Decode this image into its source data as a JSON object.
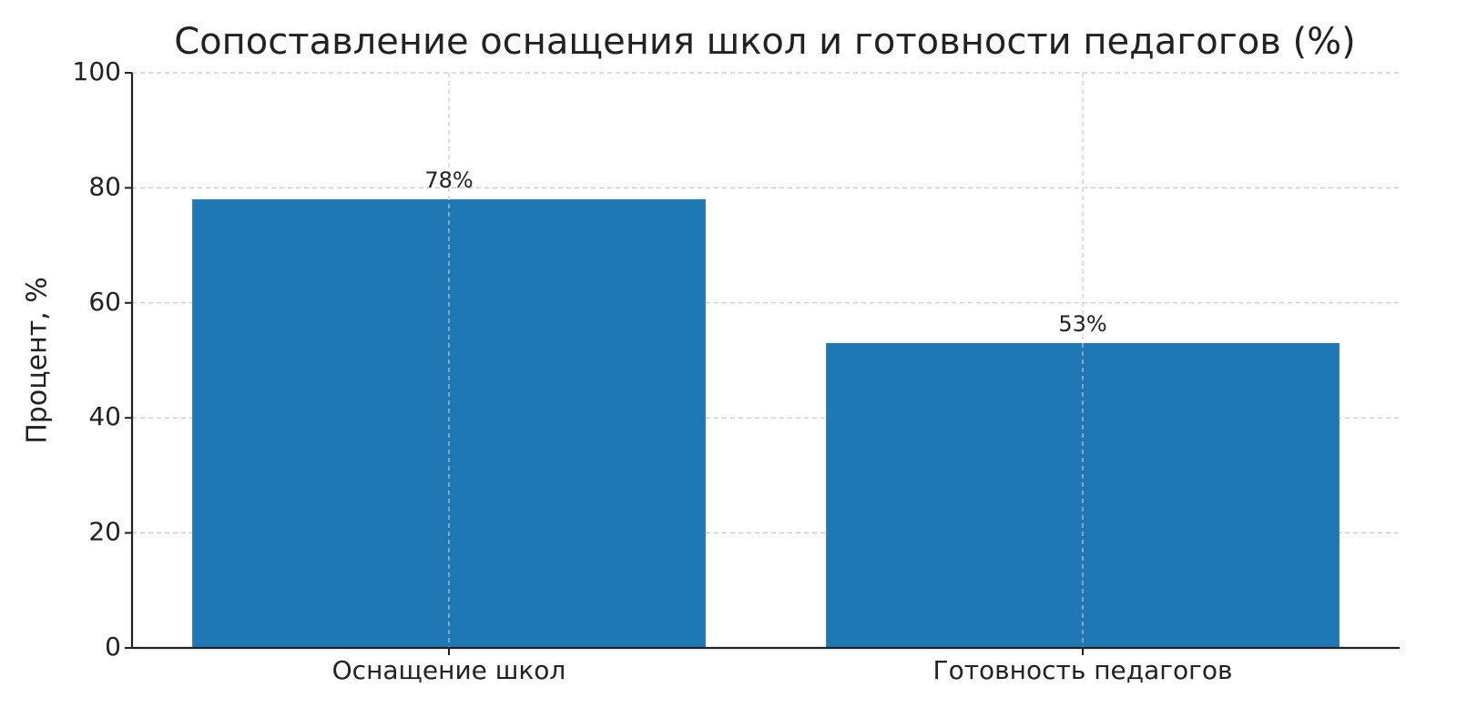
{
  "chart_data": {
    "type": "bar",
    "title": "Сопоставление оснащения школ и готовности педагогов (%)",
    "y_label": "Процент, %",
    "categories": [
      "Оснащение школ",
      "Готовность педагогов"
    ],
    "values": [
      78,
      53
    ],
    "value_labels": [
      "78%",
      "53%"
    ],
    "color": "#1f77b4",
    "ylim": [
      0,
      100
    ],
    "yticks": [
      0,
      20,
      40,
      60,
      80,
      100
    ],
    "grid": true
  }
}
